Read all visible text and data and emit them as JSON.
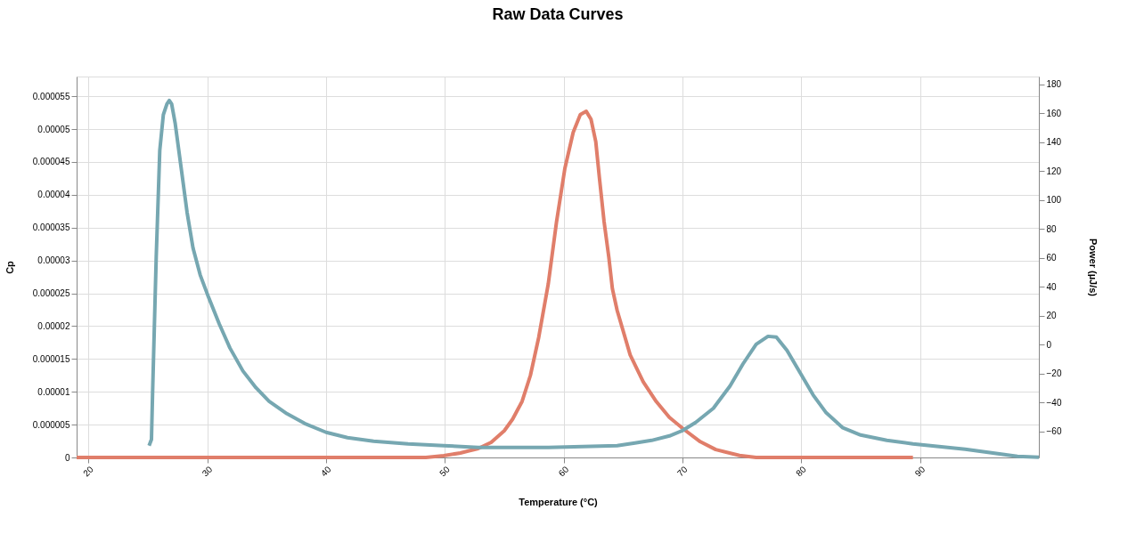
{
  "chart_data": {
    "type": "line",
    "title": "Raw Data Curves",
    "xlabel": "Temperature (°C)",
    "ylabel": "Cp",
    "y2label": "Power (µJ/s)",
    "xlim": [
      19,
      100
    ],
    "xticks": [
      20,
      30,
      40,
      50,
      60,
      70,
      80,
      90
    ],
    "ylim": [
      0,
      5.8e-05
    ],
    "yticks": [
      0,
      {
        "value": 5e-06,
        "label": "0.000005"
      },
      {
        "value": 1e-05,
        "label": "0.00001"
      },
      {
        "value": 1.5e-05,
        "label": "0.000015"
      },
      {
        "value": 2e-05,
        "label": "0.00002"
      },
      {
        "value": 2.5e-05,
        "label": "0.000025"
      },
      {
        "value": 3e-05,
        "label": "0.00003"
      },
      {
        "value": 3.5e-05,
        "label": "0.000035"
      },
      {
        "value": 4e-05,
        "label": "0.00004"
      },
      {
        "value": 4.5e-05,
        "label": "0.000045"
      },
      {
        "value": 5e-05,
        "label": "0.00005"
      },
      {
        "value": 5.5e-05,
        "label": "0.000055"
      }
    ],
    "y2lim": [
      -78,
      185.5
    ],
    "y2ticks": [
      -60,
      -40,
      -20,
      0,
      20,
      40,
      60,
      80,
      100,
      120,
      140,
      160,
      180
    ],
    "grid": true,
    "line_style": "solid",
    "series": [
      {
        "color": "#76a7b1",
        "axis": "y2",
        "x": [
          25.1,
          25.3,
          25.4,
          25.7,
          26.0,
          26.3,
          26.6,
          26.8,
          27.0,
          27.3,
          27.8,
          28.3,
          28.8,
          29.4,
          30.1,
          31.0,
          31.9,
          33.0,
          34.1,
          35.2,
          36.7,
          38.2,
          40.0,
          41.8,
          44.0,
          46.9,
          49.9,
          52.8,
          55.7,
          58.7,
          61.6,
          64.5,
          66.0,
          67.4,
          68.9,
          70.0,
          71.1,
          72.6,
          74.0,
          75.1,
          76.2,
          77.2,
          77.9,
          78.8,
          79.9,
          81.0,
          82.1,
          83.5,
          85.0,
          87.2,
          89.4,
          91.6,
          93.8,
          96.0,
          98.2,
          100.0
        ],
        "values": [
          -69.8,
          -65.5,
          -31.7,
          60.6,
          134.5,
          159.1,
          166.5,
          168.9,
          166.5,
          152.9,
          122.2,
          91.4,
          66.8,
          48.3,
          32.9,
          14.5,
          -2.2,
          -18.2,
          -29.8,
          -39.1,
          -47.7,
          -54.5,
          -60.6,
          -64.3,
          -66.8,
          -68.6,
          -69.8,
          -71.1,
          -71.1,
          -71.1,
          -70.5,
          -69.8,
          -68.0,
          -66.2,
          -63.1,
          -59.4,
          -53.8,
          -44.0,
          -28.6,
          -13.2,
          0.3,
          5.8,
          5.2,
          -4.0,
          -19.4,
          -34.8,
          -47.1,
          -57.5,
          -62.5,
          -66.2,
          -68.6,
          -70.5,
          -72.3,
          -74.8,
          -77.2,
          -77.8
        ]
      },
      {
        "color": "#e07e6a",
        "x": [
          19.0,
          48.4,
          49.9,
          51.3,
          52.8,
          53.9,
          55.0,
          55.7,
          56.5,
          57.2,
          57.9,
          58.7,
          59.4,
          60.1,
          60.8,
          61.4,
          61.9,
          62.3,
          62.7,
          63.0,
          63.4,
          63.8,
          64.1,
          64.5,
          65.6,
          66.7,
          67.8,
          68.9,
          70.1,
          71.5,
          72.8,
          74.8,
          76.2,
          89.4
        ],
        "values": [
          0,
          0,
          2.7e-07,
          6.8e-07,
          1.36e-06,
          2.3e-06,
          4.07e-06,
          5.83e-06,
          8.54e-06,
          1.25e-05,
          1.83e-05,
          2.64e-05,
          3.59e-05,
          4.4e-05,
          4.95e-05,
          5.22e-05,
          5.27e-05,
          5.15e-05,
          4.81e-05,
          4.27e-05,
          3.59e-05,
          3.05e-05,
          2.57e-05,
          2.24e-05,
          1.56e-05,
          1.15e-05,
          8.5e-06,
          6.1e-06,
          4.3e-06,
          2.4e-06,
          1.2e-06,
          3e-07,
          0,
          0
        ]
      }
    ]
  }
}
